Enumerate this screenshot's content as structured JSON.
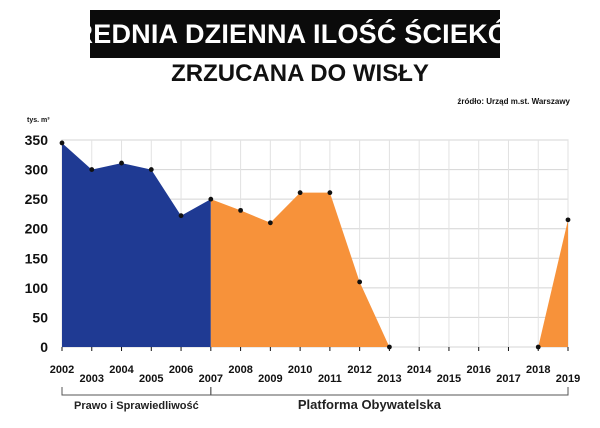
{
  "chart_data": {
    "type": "area",
    "title": "ŚREDNIA DZIENNA ILOŚĆ ŚCIEKÓW",
    "subtitle": "ZRZUCANA DO WISŁY",
    "source": "źródło: Urząd m.st. Warszawy",
    "ylabel": "tys. m³",
    "ylim": [
      0,
      350
    ],
    "yticks": [
      0,
      50,
      100,
      150,
      200,
      250,
      300,
      350
    ],
    "x": [
      "2002",
      "2003",
      "2004",
      "2005",
      "2006",
      "2007",
      "2008",
      "2009",
      "2010",
      "2011",
      "2012",
      "2013",
      "2014",
      "2015",
      "2016",
      "2017",
      "2018",
      "2019"
    ],
    "values": [
      345,
      300,
      311,
      300,
      222,
      250,
      231,
      210,
      261,
      261,
      110,
      0,
      null,
      null,
      null,
      null,
      0,
      215
    ],
    "grid": true,
    "periods": [
      {
        "label": "Prawo i Sprawiedliwość",
        "from": "2002",
        "to": "2007",
        "color": "#1f3a93"
      },
      {
        "label": "Platforma Obywatelska",
        "from": "2007",
        "to": "2019",
        "color": "#f7923a"
      }
    ]
  }
}
